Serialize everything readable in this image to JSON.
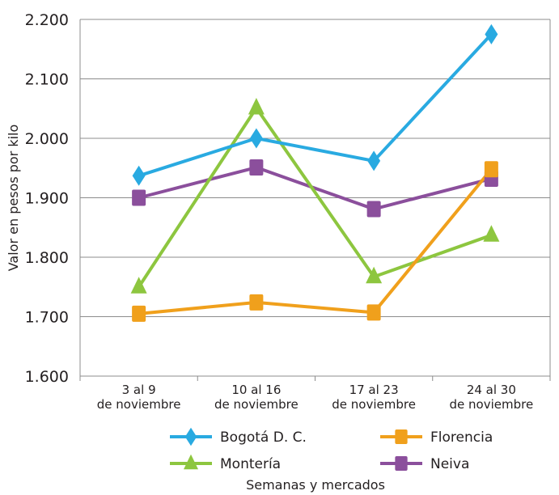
{
  "chart_data": {
    "type": "line",
    "title": "",
    "xlabel": "Semanas y mercados",
    "ylabel": "Valor en pesos por kilo",
    "ylim": [
      1600,
      2200
    ],
    "yticks": [
      1600,
      1700,
      1800,
      1900,
      2000,
      2100,
      2200
    ],
    "ytick_labels": [
      "1.600",
      "1.700",
      "1.800",
      "1.900",
      "2.000",
      "2.100",
      "2.200"
    ],
    "grid": true,
    "legend_position": "bottom",
    "categories": [
      [
        "3 al 9",
        "de noviembre"
      ],
      [
        "10 al 16",
        "de noviembre"
      ],
      [
        "17 al 23",
        "de noviembre"
      ],
      [
        "24 al 30",
        "de noviembre"
      ]
    ],
    "series": [
      {
        "name": "Bogotá D. C.",
        "values": [
          1937,
          2000,
          1962,
          2175
        ],
        "color": "#29aae1",
        "marker": "diamond"
      },
      {
        "name": "Florencia",
        "values": [
          1705,
          1724,
          1707,
          1948
        ],
        "color": "#f0a01c",
        "marker": "square"
      },
      {
        "name": "Montería",
        "values": [
          1750,
          2051,
          1767,
          1837
        ],
        "color": "#8dc63f",
        "marker": "triangle"
      },
      {
        "name": "Neiva",
        "values": [
          1900,
          1951,
          1881,
          1932
        ],
        "color": "#8b4f9c",
        "marker": "square"
      }
    ]
  }
}
